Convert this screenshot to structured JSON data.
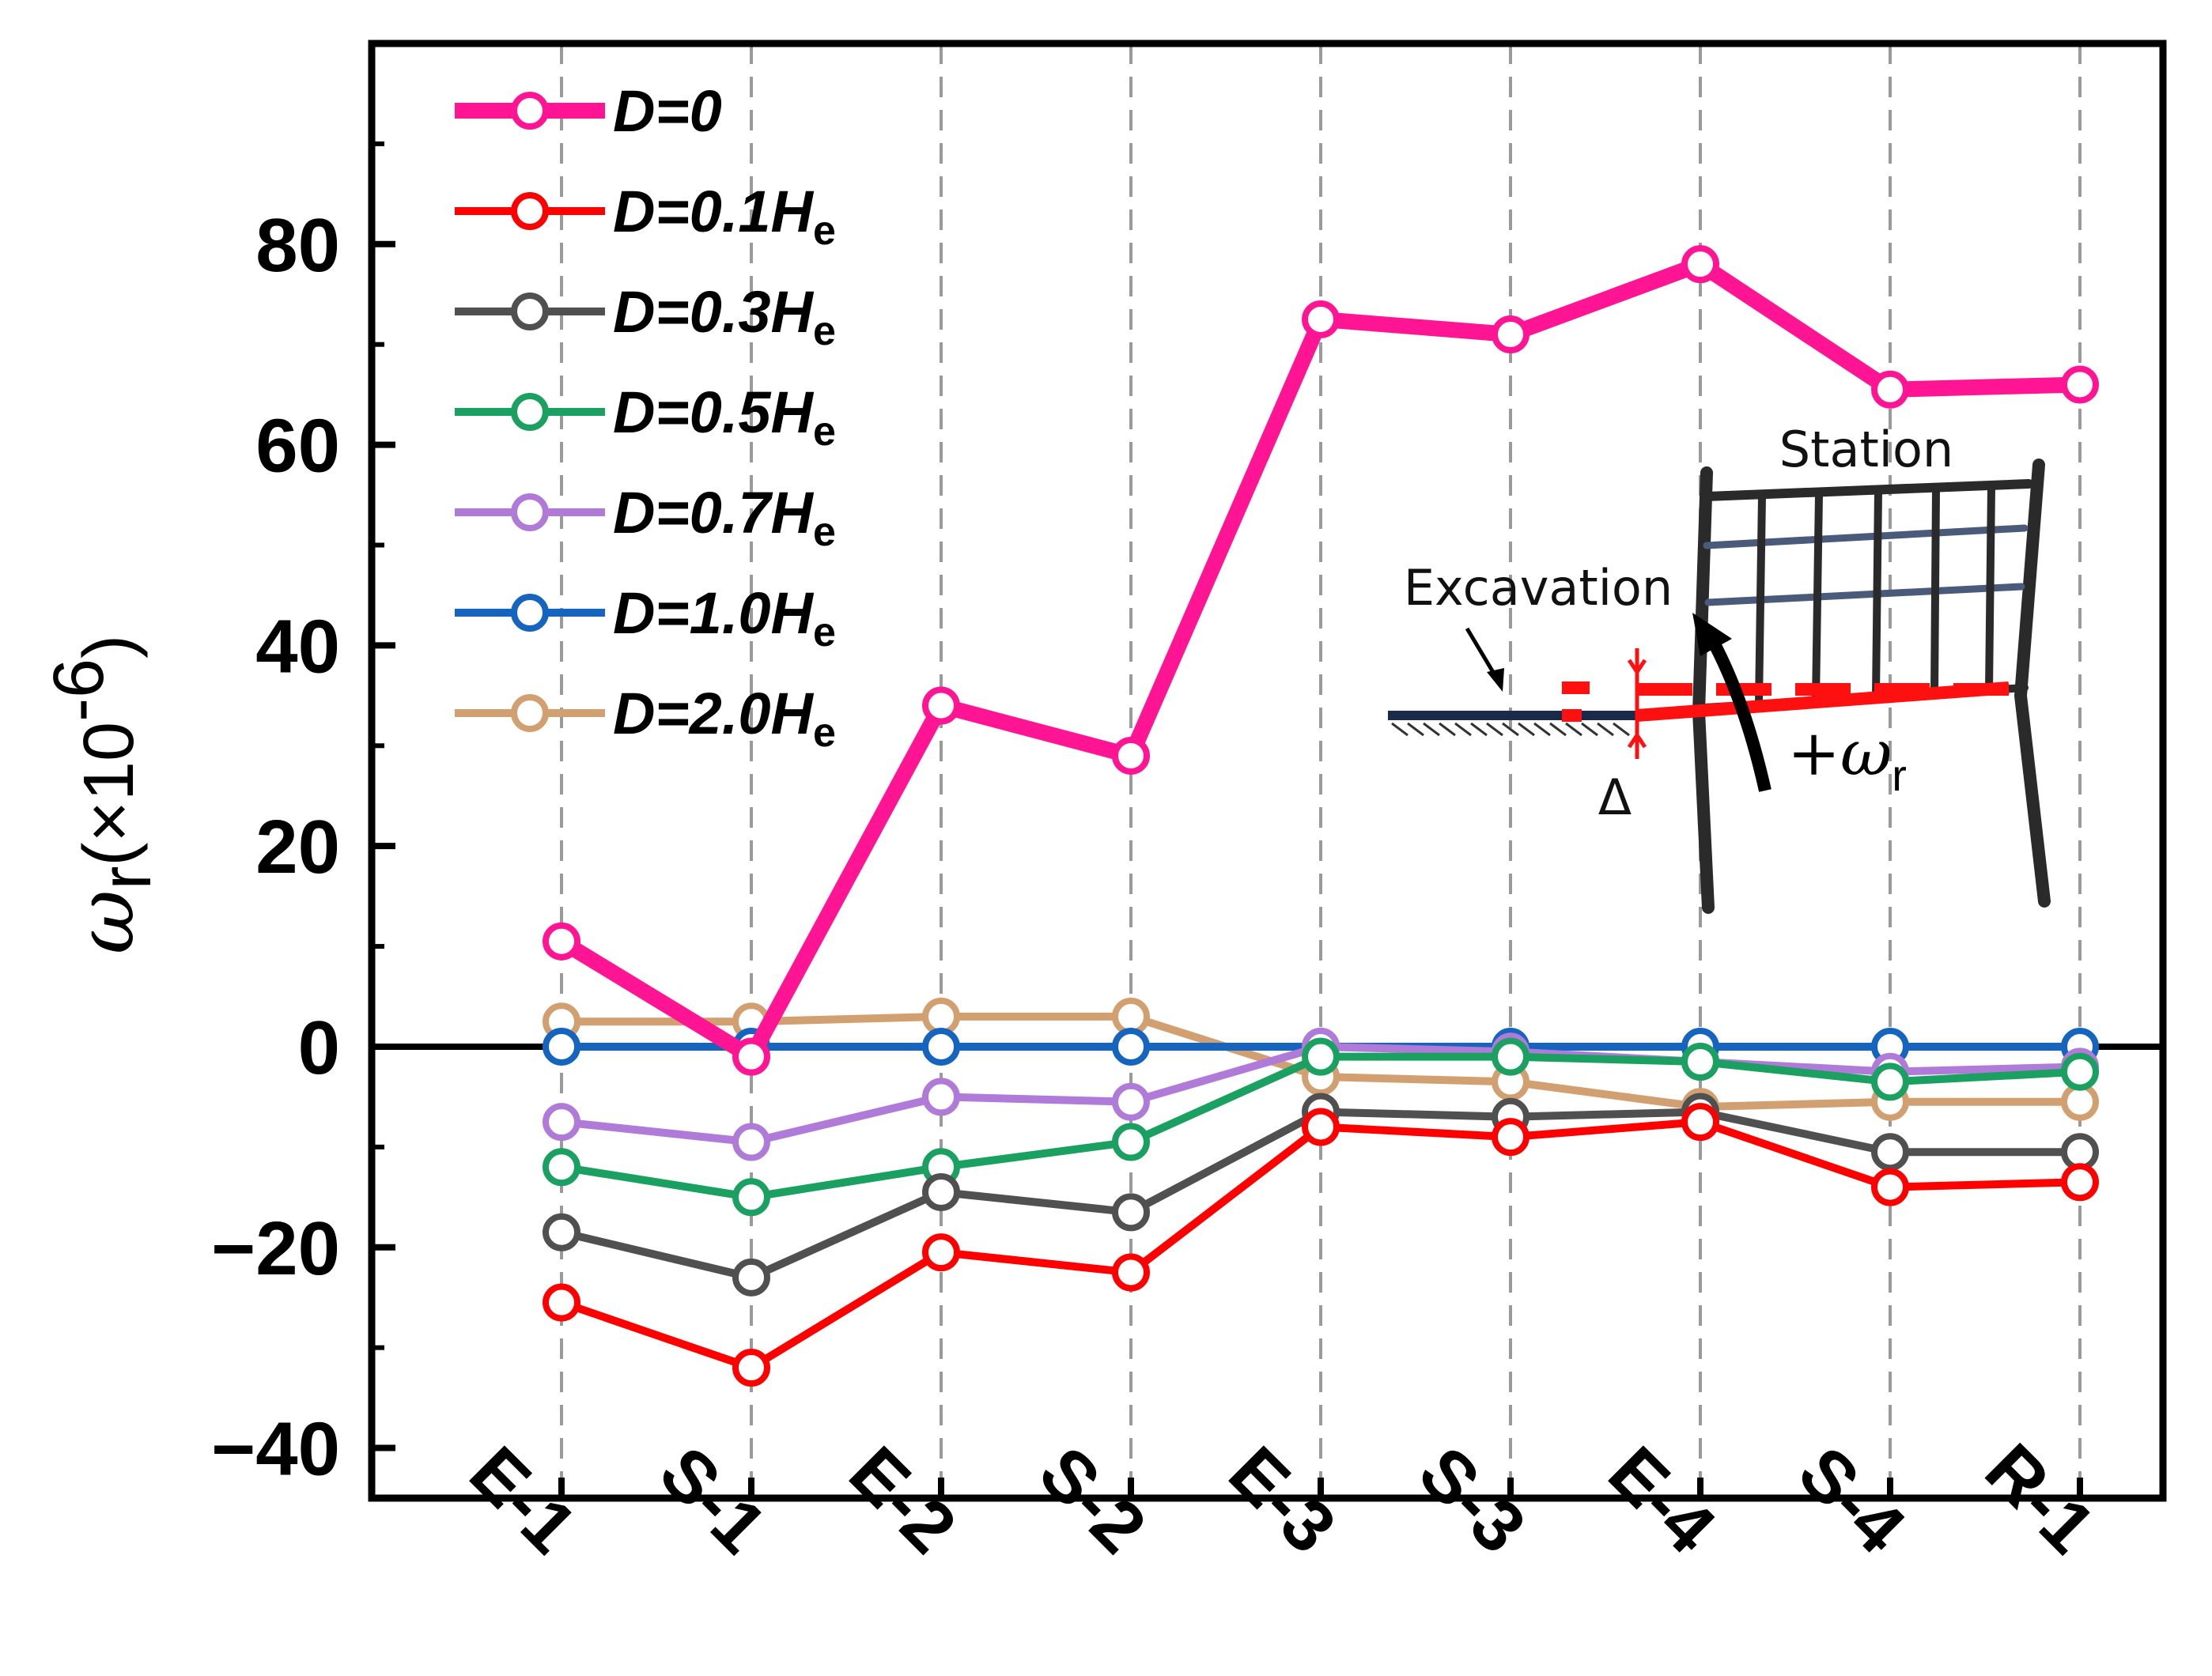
{
  "chart_data": {
    "type": "line",
    "title": "",
    "xlabel": "",
    "ylabel": {
      "symbol": "ω",
      "subscript": "r",
      "scale": "(×10",
      "exponent": "-6",
      "close": ")"
    },
    "categories": [
      "E-1",
      "S-1",
      "E-2",
      "S-2",
      "E-3",
      "S-3",
      "E-4",
      "S-4",
      "R-1"
    ],
    "ylim": [
      -45,
      100
    ],
    "yticks": [
      -40,
      -20,
      0,
      20,
      40,
      60,
      80
    ],
    "ytick_labels": [
      "−40",
      "−20",
      "0",
      "20",
      "40",
      "60",
      "80"
    ],
    "legend_position": "top-left",
    "series": [
      {
        "name": "D=0",
        "name_main": "D=0",
        "name_sub": "",
        "color": "#ff1493",
        "thick": true,
        "values": [
          10.5,
          -1.0,
          34.0,
          29.0,
          72.5,
          71.0,
          78.0,
          65.5,
          66.0
        ]
      },
      {
        "name": "D=0.1He",
        "name_main": "D=0.1H",
        "name_sub": "e",
        "color": "#ff0000",
        "values": [
          -25.5,
          -32.0,
          -20.5,
          -22.5,
          -8.0,
          -9.0,
          -7.5,
          -14.0,
          -13.5
        ]
      },
      {
        "name": "D=0.3He",
        "name_main": "D=0.3H",
        "name_sub": "e",
        "color": "#505050",
        "values": [
          -18.5,
          -23.0,
          -14.5,
          -16.5,
          -6.5,
          -7.0,
          -6.5,
          -10.5,
          -10.5
        ]
      },
      {
        "name": "D=0.5He",
        "name_main": "D=0.5H",
        "name_sub": "e",
        "color": "#1aa060",
        "values": [
          -12.0,
          -15.0,
          -12.0,
          -9.5,
          -1.0,
          -1.0,
          -1.5,
          -3.5,
          -2.5
        ]
      },
      {
        "name": "D=0.7He",
        "name_main": "D=0.7H",
        "name_sub": "e",
        "color": "#b07ad8",
        "values": [
          -7.5,
          -9.5,
          -5.0,
          -5.5,
          0.0,
          -0.5,
          -1.5,
          -2.5,
          -2.0
        ]
      },
      {
        "name": "D=1.0He",
        "name_main": "D=1.0H",
        "name_sub": "e",
        "color": "#1565c0",
        "values": [
          0.0,
          0.0,
          0.0,
          0.0,
          0.0,
          0.0,
          0.0,
          0.0,
          0.0
        ]
      },
      {
        "name": "D=2.0He",
        "name_main": "D=2.0H",
        "name_sub": "e",
        "color": "#d2a070",
        "values": [
          2.5,
          2.5,
          3.0,
          3.0,
          -3.0,
          -3.5,
          -6.0,
          -5.5,
          -5.5
        ]
      }
    ],
    "inset": {
      "station_label": "Station",
      "excavation_label": "Excavation",
      "delta_label": "Δ",
      "omega_label_prefix": "+ω",
      "omega_label_sub": "r"
    }
  }
}
